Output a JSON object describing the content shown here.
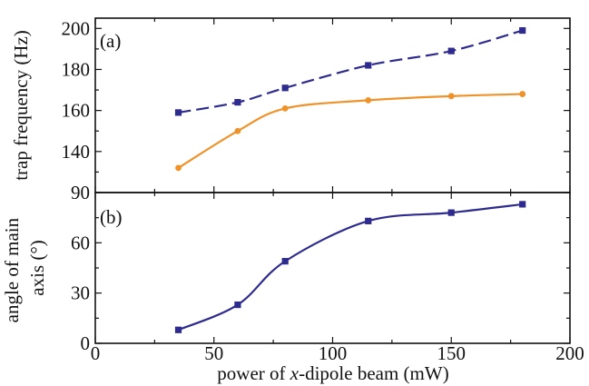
{
  "chart_data": [
    {
      "type": "line",
      "panel_label": "(a)",
      "ylabel": "trap frequency (Hz)",
      "xlim": [
        0,
        200
      ],
      "ylim": [
        120,
        205
      ],
      "yticks": [
        140,
        160,
        180,
        200
      ],
      "grid": false,
      "series": [
        {
          "style": "dashed",
          "marker": "square",
          "color": "#2e2b8f",
          "x": [
            35,
            60,
            80,
            115,
            150,
            180
          ],
          "y": [
            159,
            164,
            171,
            182,
            189,
            199
          ]
        },
        {
          "style": "solid",
          "marker": "circle",
          "color": "#f0922a",
          "x": [
            35,
            60,
            80,
            115,
            150,
            180
          ],
          "y": [
            132,
            150,
            161,
            165,
            167,
            168
          ]
        }
      ]
    },
    {
      "type": "line",
      "panel_label": "(b)",
      "ylabel": [
        "angle of main",
        "axis (°)"
      ],
      "xlabel_prefix": "power of ",
      "xlabel_italic": "x",
      "xlabel_suffix": "-dipole beam  (mW)",
      "xlim": [
        0,
        200
      ],
      "ylim": [
        0,
        90
      ],
      "xticks": [
        0,
        50,
        100,
        150,
        200
      ],
      "yticks": [
        0,
        30,
        60,
        90
      ],
      "grid": false,
      "series": [
        {
          "style": "solid",
          "marker": "square",
          "color": "#2e2b8f",
          "x": [
            35,
            60,
            80,
            115,
            150,
            180
          ],
          "y": [
            8,
            23,
            49,
            73,
            78,
            83
          ]
        }
      ]
    }
  ]
}
